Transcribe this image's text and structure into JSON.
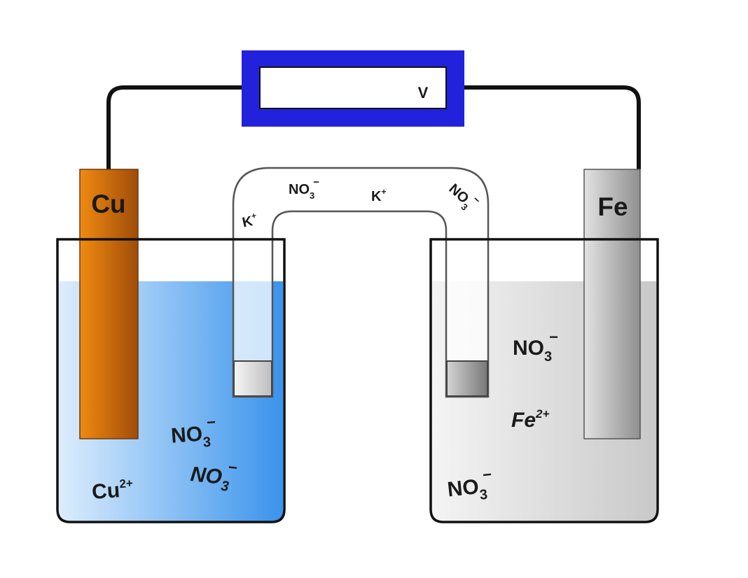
{
  "voltmeter": {
    "label": "V"
  },
  "electrodes": {
    "left": {
      "label": "Cu"
    },
    "right": {
      "label": "Fe"
    }
  },
  "salt_bridge": {
    "ions": [
      {
        "base": "K",
        "sup": "+",
        "sub": ""
      },
      {
        "base": "NO",
        "sub": "3",
        "sup": "−"
      },
      {
        "base": "K",
        "sup": "+",
        "sub": ""
      },
      {
        "base": "NO",
        "sub": "3",
        "sup": "−"
      }
    ]
  },
  "left_beaker": {
    "ions": [
      {
        "base": "NO",
        "sub": "3",
        "sup": "−"
      },
      {
        "base": "Cu",
        "sub": "",
        "sup": "2+"
      },
      {
        "base": "NO",
        "sub": "3",
        "sup": "−"
      }
    ]
  },
  "right_beaker": {
    "ions": [
      {
        "base": "NO",
        "sub": "3",
        "sup": "−"
      },
      {
        "base": "Fe",
        "sub": "",
        "sup": "2+"
      },
      {
        "base": "NO",
        "sub": "3",
        "sup": "−"
      }
    ]
  },
  "colors": {
    "solution_left_light": "#dcedfc",
    "solution_left_dark": "#3a93ec",
    "solution_right_light": "#f4f4f4",
    "solution_right_dark": "#c9c9c9",
    "copper_light": "#f08a10",
    "copper_dark": "#a04c0a",
    "iron_light": "#e2e2e2",
    "iron_dark": "#8f8f8f",
    "voltmeter_frame": "#2222dd",
    "wire": "#111111"
  }
}
